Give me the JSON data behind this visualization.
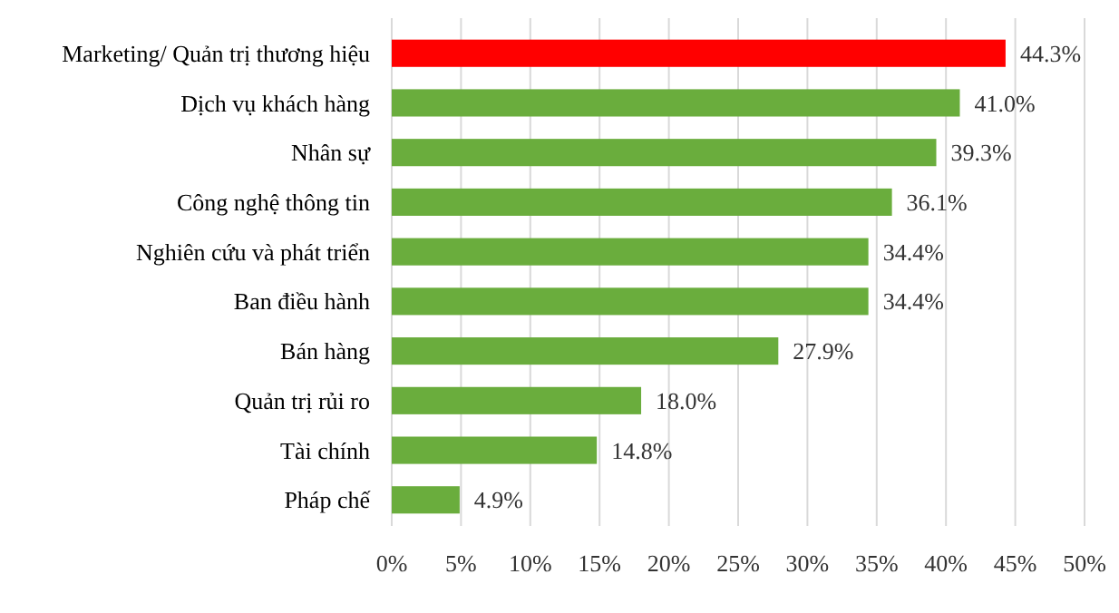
{
  "chart_data": {
    "type": "bar",
    "orientation": "horizontal",
    "categories": [
      "Marketing/ Quản trị thương hiệu",
      "Dịch vụ khách hàng",
      "Nhân sự",
      "Công nghệ thông tin",
      "Nghiên cứu và phát triển",
      "Ban điều hành",
      "Bán hàng",
      "Quản trị rủi ro",
      "Tài chính",
      "Pháp chế"
    ],
    "values": [
      44.3,
      41.0,
      39.3,
      36.1,
      34.4,
      34.4,
      27.9,
      18.0,
      14.8,
      4.9
    ],
    "colors": [
      "#ff0000",
      "#6aad3d",
      "#6aad3d",
      "#6aad3d",
      "#6aad3d",
      "#6aad3d",
      "#6aad3d",
      "#6aad3d",
      "#6aad3d",
      "#6aad3d"
    ],
    "value_labels": [
      "44.3%",
      "41.0%",
      "39.3%",
      "36.1%",
      "34.4%",
      "34.4%",
      "27.9%",
      "18.0%",
      "14.8%",
      "4.9%"
    ],
    "xlim": [
      0,
      50
    ],
    "xticks": [
      {
        "value": 0,
        "label": "0%"
      },
      {
        "value": 5,
        "label": "5%"
      },
      {
        "value": 10,
        "label": "10%"
      },
      {
        "value": 15,
        "label": "15%"
      },
      {
        "value": 20,
        "label": "20%"
      },
      {
        "value": 25,
        "label": "25%"
      },
      {
        "value": 30,
        "label": "30%"
      },
      {
        "value": 35,
        "label": "35%"
      },
      {
        "value": 40,
        "label": "40%"
      },
      {
        "value": 45,
        "label": "45%"
      },
      {
        "value": 50,
        "label": "50%"
      }
    ],
    "grid": "x"
  }
}
